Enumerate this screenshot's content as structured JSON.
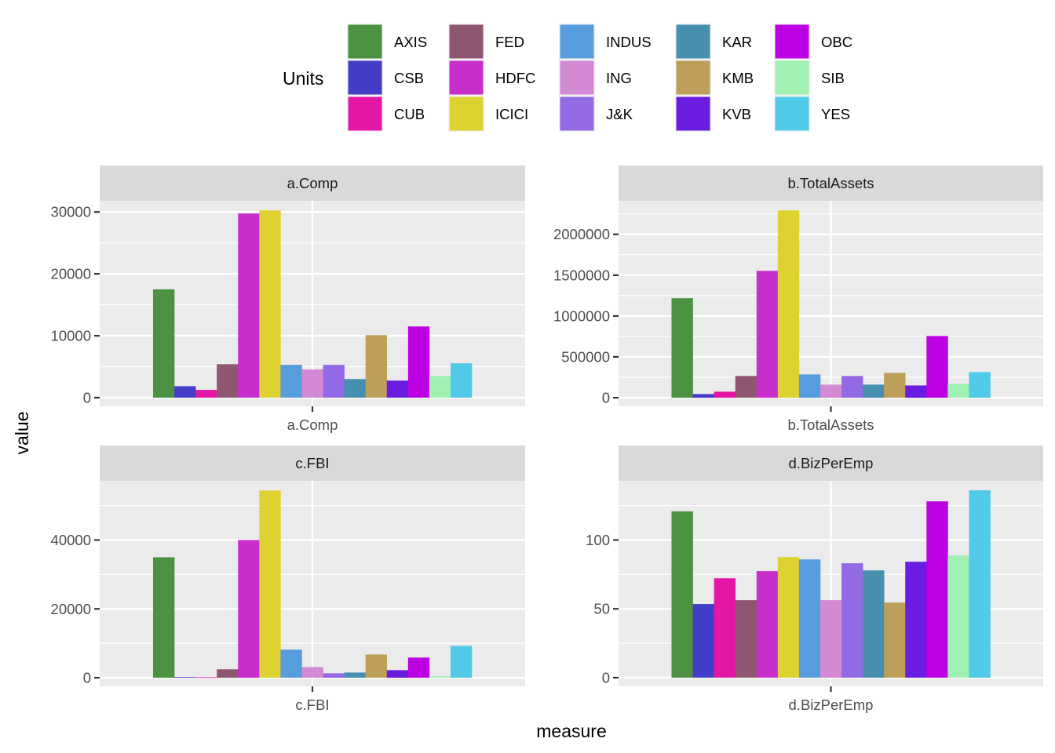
{
  "chart_data": {
    "type": "bar",
    "xlabel": "measure",
    "ylabel": "value",
    "legend": {
      "title": "Units",
      "placement": "top",
      "entries": [
        "AXIS",
        "CSB",
        "CUB",
        "FED",
        "HDFC",
        "ICICI",
        "INDUS",
        "ING",
        "J&K",
        "KAR",
        "KMB",
        "KVB",
        "OBC",
        "SIB",
        "YES"
      ]
    },
    "colors": {
      "AXIS": "#4C9242",
      "CSB": "#443DC8",
      "CUB": "#E516A6",
      "FED": "#8E5670",
      "HDFC": "#C82ECC",
      "ICICI": "#DDD232",
      "INDUS": "#579CDD",
      "ING": "#D389D3",
      "J&K": "#936AE5",
      "KAR": "#468FAE",
      "KMB": "#BE9F5A",
      "KVB": "#6A1CE0",
      "OBC": "#BD00E3",
      "SIB": "#A0F0B4",
      "YES": "#50CAE8"
    },
    "grid": true,
    "facets": [
      {
        "title": "a.Comp",
        "category": "a.Comp",
        "yticks": [
          0,
          10000,
          20000,
          30000
        ],
        "ytick_labels": [
          "0",
          "10000",
          "20000",
          "30000"
        ],
        "ylim": [
          -1400,
          31800
        ],
        "values": [
          17500,
          1850,
          1250,
          5400,
          29750,
          30250,
          5300,
          4550,
          5300,
          3000,
          10100,
          2750,
          11500,
          3500,
          5550
        ]
      },
      {
        "title": "b.TotalAssets",
        "category": "b.TotalAssets",
        "yticks": [
          0,
          500000,
          1000000,
          1500000,
          2000000
        ],
        "ytick_labels": [
          "0",
          "500000",
          "1000000",
          "1500000",
          "2000000"
        ],
        "ylim": [
          -105000,
          2410000
        ],
        "values": [
          1218000,
          45000,
          74000,
          266000,
          1553000,
          2293000,
          285000,
          160000,
          266000,
          160000,
          304000,
          150000,
          755000,
          170000,
          314000
        ]
      },
      {
        "title": "c.FBI",
        "category": "c.FBI",
        "yticks": [
          0,
          20000,
          40000
        ],
        "ytick_labels": [
          "0",
          "20000",
          "40000"
        ],
        "ylim": [
          -2500,
          57200
        ],
        "values": [
          35000,
          200,
          150,
          2450,
          40000,
          54400,
          8150,
          3100,
          1300,
          1500,
          6750,
          2200,
          5850,
          400,
          9250
        ]
      },
      {
        "title": "d.BizPerEmp",
        "category": "d.BizPerEmp",
        "yticks": [
          0,
          50,
          100
        ],
        "ytick_labels": [
          "0",
          "50",
          "100"
        ],
        "ylim": [
          -6.3,
          143
        ],
        "values": [
          120.8,
          53.5,
          72.2,
          56.3,
          77.4,
          87.6,
          85.9,
          56.3,
          83.1,
          77.9,
          54.6,
          84.2,
          128.1,
          88.8,
          136.1
        ]
      }
    ]
  }
}
